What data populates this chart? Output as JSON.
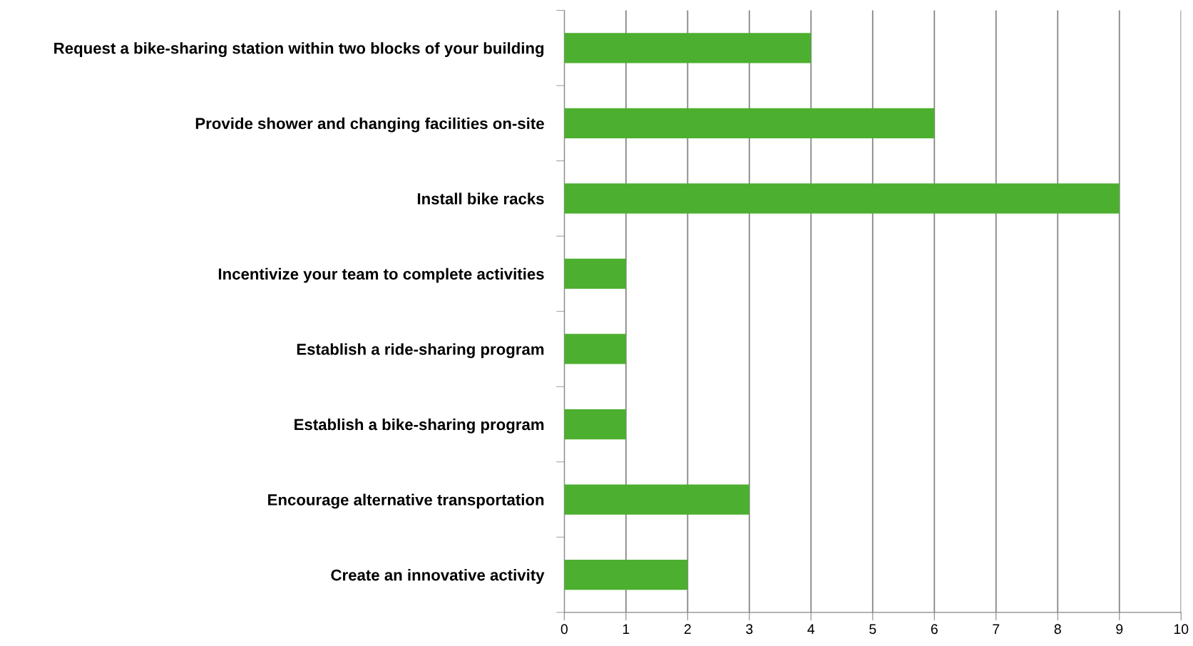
{
  "chart_data": {
    "type": "bar",
    "orientation": "horizontal",
    "categories": [
      "Request a bike-sharing station within two blocks of your building",
      "Provide shower and changing facilities on-site",
      "Install bike racks",
      "Incentivize your team to complete activities",
      "Establish a ride-sharing program",
      "Establish a bike-sharing program",
      "Encourage alternative transportation",
      "Create an innovative activity"
    ],
    "values": [
      4,
      6,
      9,
      1,
      1,
      1,
      3,
      2
    ],
    "color": "#4caf2f",
    "xlim": [
      0,
      10
    ],
    "xticks": [
      0,
      1,
      2,
      3,
      4,
      5,
      6,
      7,
      8,
      9,
      10
    ],
    "grid": "x",
    "legend": false
  }
}
